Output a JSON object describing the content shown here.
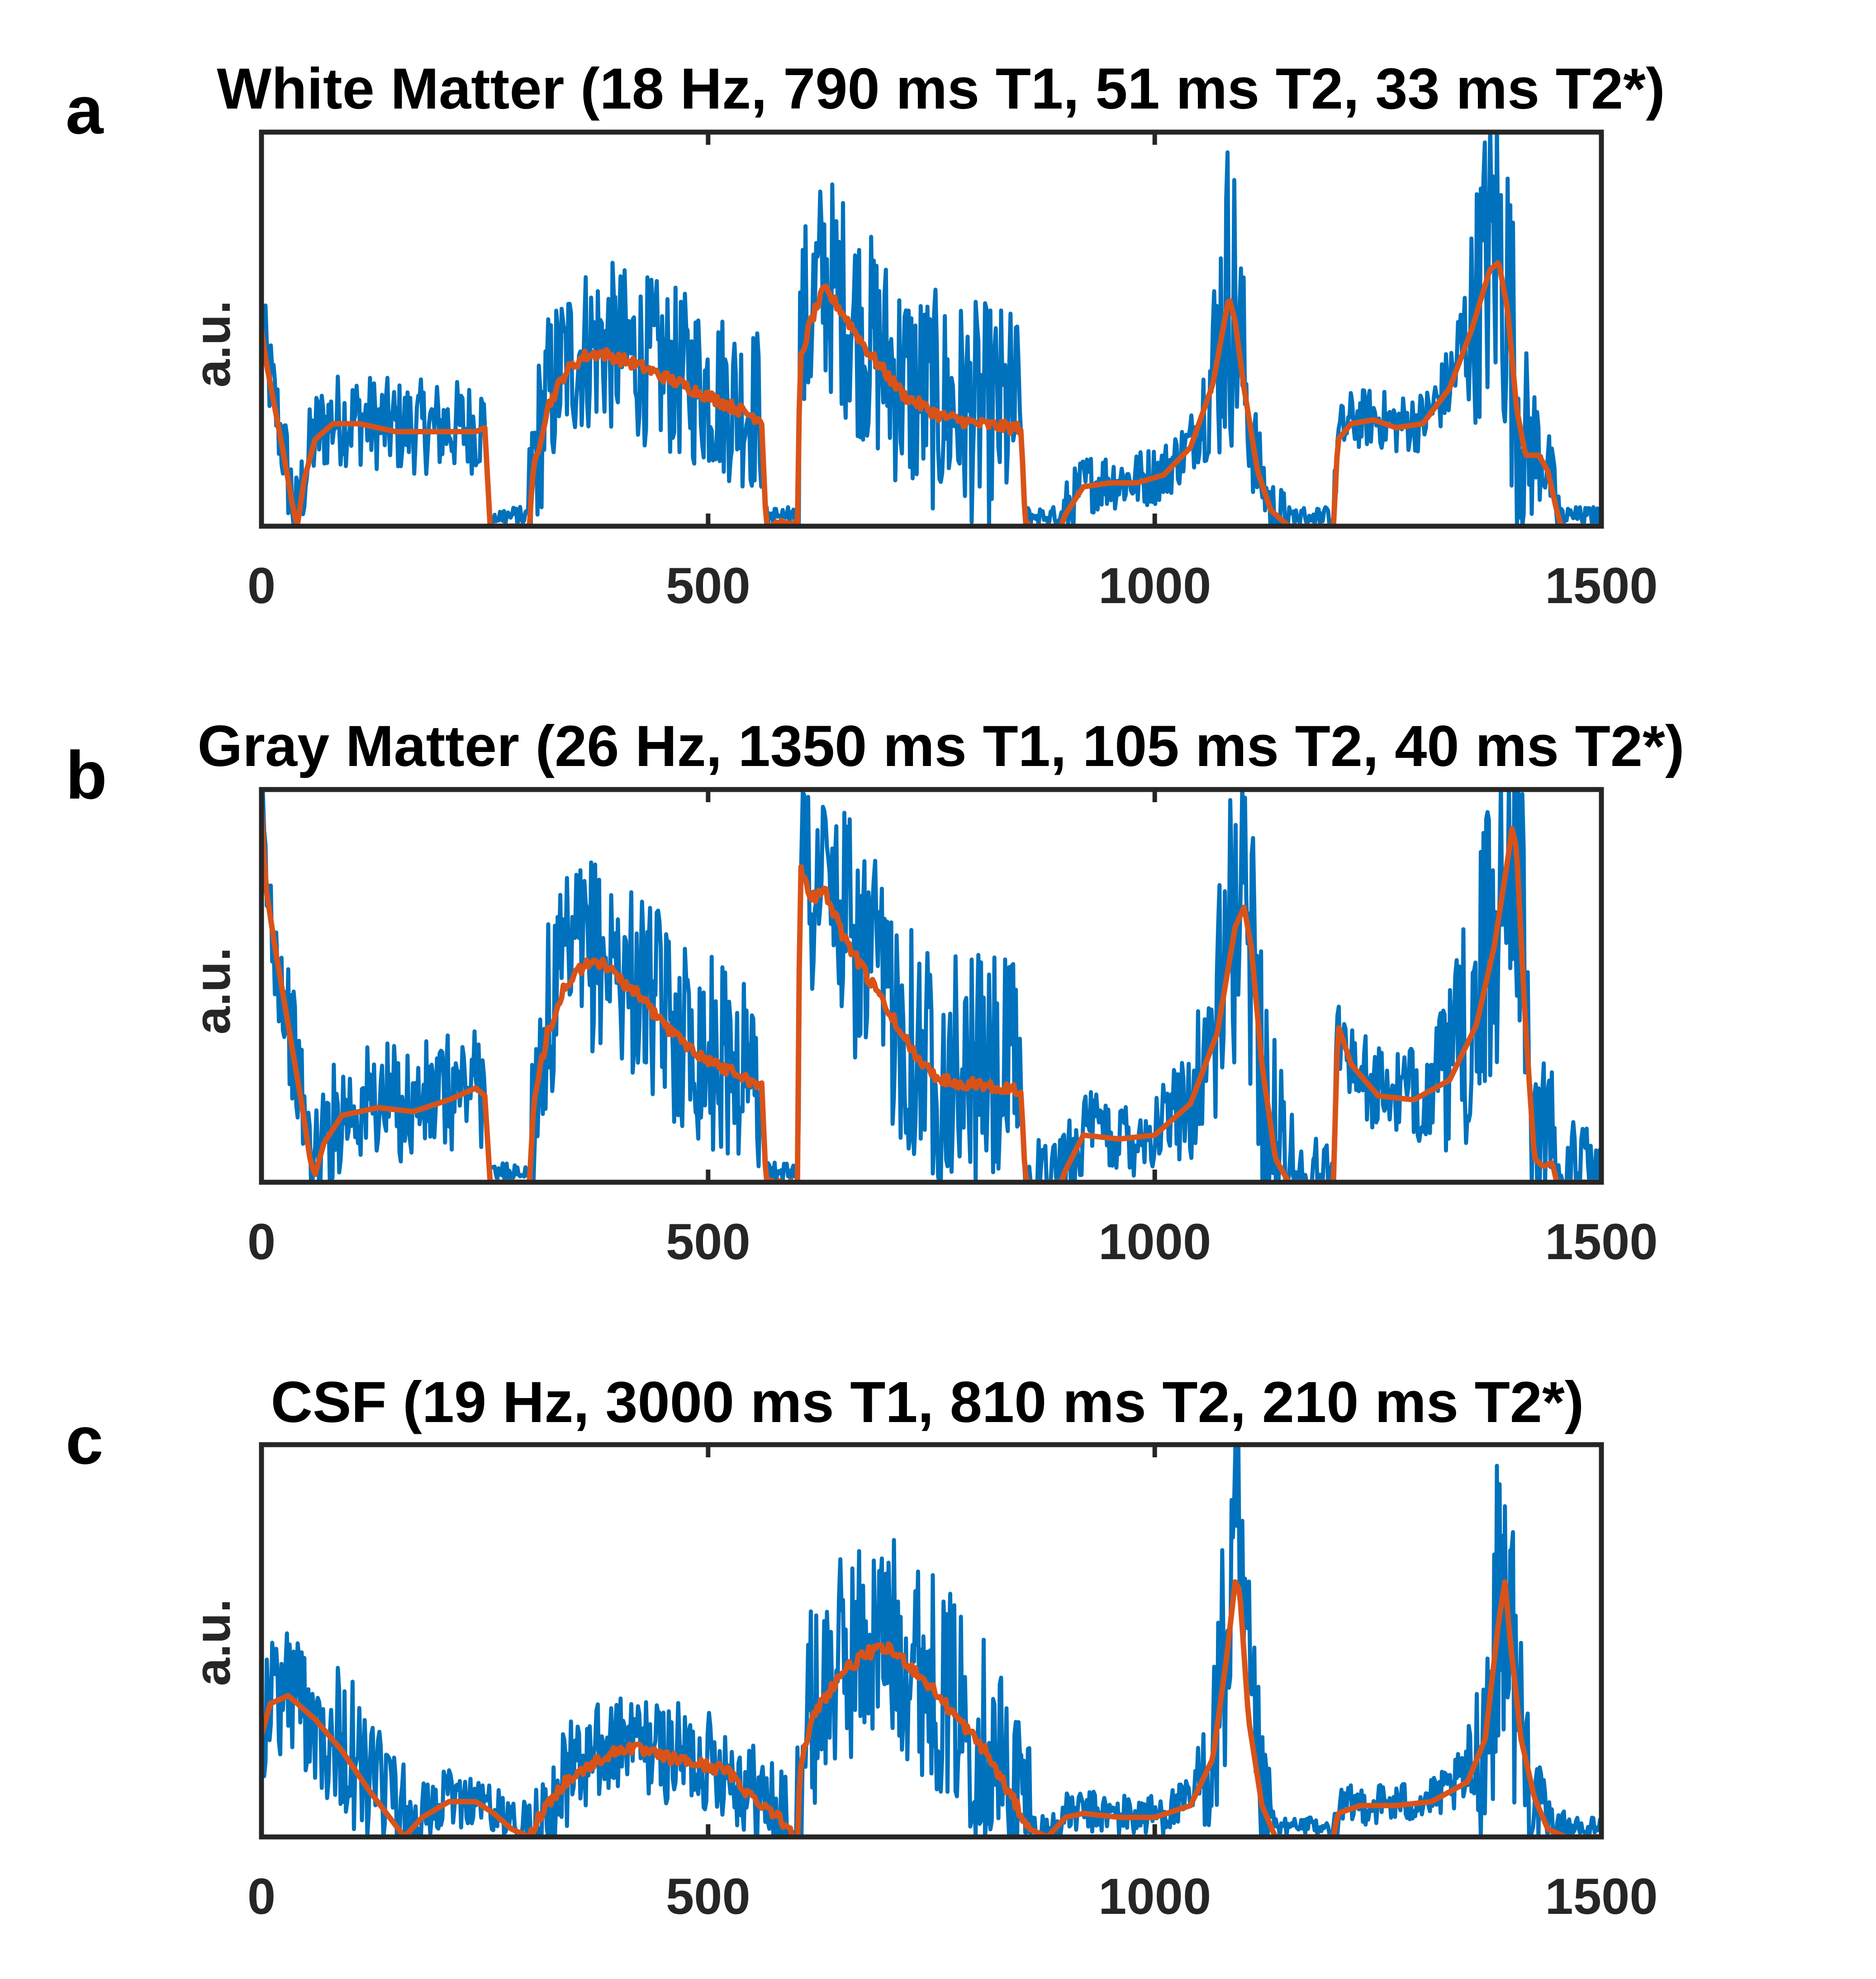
{
  "figure": {
    "colors": {
      "measured": "#0072BD",
      "fit": "#D95319",
      "axis": "#262626"
    }
  },
  "chart_data": [
    {
      "type": "line",
      "panel_label": "a",
      "title": "White Matter (18 Hz, 790 ms T1, 51 ms T2, 33 ms T2*)",
      "ylabel": "a.u.",
      "xlabel": "",
      "xlim": [
        0,
        1500
      ],
      "ylim": [
        0,
        1.0
      ],
      "xticks": [
        0,
        500,
        1000,
        1500
      ],
      "xtick_labels": [
        "0",
        "500",
        "1000",
        "1500"
      ],
      "fit_points": [
        [
          0,
          0.5
        ],
        [
          5,
          0.42
        ],
        [
          15,
          0.3
        ],
        [
          25,
          0.18
        ],
        [
          35,
          0.05
        ],
        [
          40,
          0.0
        ],
        [
          48,
          0.12
        ],
        [
          60,
          0.22
        ],
        [
          80,
          0.26
        ],
        [
          110,
          0.26
        ],
        [
          150,
          0.24
        ],
        [
          200,
          0.24
        ],
        [
          240,
          0.24
        ],
        [
          250,
          0.25
        ],
        [
          256,
          0.0
        ],
        [
          300,
          0.0
        ],
        [
          305,
          0.15
        ],
        [
          320,
          0.3
        ],
        [
          340,
          0.39
        ],
        [
          360,
          0.43
        ],
        [
          380,
          0.44
        ],
        [
          420,
          0.41
        ],
        [
          460,
          0.37
        ],
        [
          500,
          0.33
        ],
        [
          540,
          0.29
        ],
        [
          560,
          0.27
        ],
        [
          565,
          0.0
        ],
        [
          600,
          0.0
        ],
        [
          603,
          0.42
        ],
        [
          615,
          0.52
        ],
        [
          630,
          0.6
        ],
        [
          645,
          0.56
        ],
        [
          680,
          0.44
        ],
        [
          720,
          0.33
        ],
        [
          760,
          0.28
        ],
        [
          800,
          0.26
        ],
        [
          840,
          0.25
        ],
        [
          850,
          0.25
        ],
        [
          855,
          0.0
        ],
        [
          895,
          0.0
        ],
        [
          900,
          0.03
        ],
        [
          920,
          0.1
        ],
        [
          950,
          0.11
        ],
        [
          980,
          0.11
        ],
        [
          1010,
          0.13
        ],
        [
          1040,
          0.2
        ],
        [
          1065,
          0.36
        ],
        [
          1078,
          0.52
        ],
        [
          1083,
          0.58
        ],
        [
          1090,
          0.52
        ],
        [
          1100,
          0.35
        ],
        [
          1115,
          0.14
        ],
        [
          1130,
          0.04
        ],
        [
          1150,
          0.0
        ],
        [
          1200,
          0.0
        ],
        [
          1205,
          0.22
        ],
        [
          1220,
          0.26
        ],
        [
          1245,
          0.27
        ],
        [
          1270,
          0.25
        ],
        [
          1300,
          0.26
        ],
        [
          1330,
          0.35
        ],
        [
          1355,
          0.5
        ],
        [
          1375,
          0.65
        ],
        [
          1385,
          0.67
        ],
        [
          1395,
          0.55
        ],
        [
          1405,
          0.3
        ],
        [
          1415,
          0.18
        ],
        [
          1430,
          0.18
        ],
        [
          1440,
          0.14
        ],
        [
          1450,
          0.04
        ],
        [
          1455,
          0.0
        ],
        [
          1500,
          0.0
        ]
      ],
      "meas_segments": [
        [
          0,
          250,
          0.22
        ],
        [
          300,
          560,
          0.4
        ],
        [
          600,
          850,
          0.52
        ],
        [
          860,
          1500,
          0.14
        ]
      ],
      "meas_peaks": [
        [
          1083,
          0.62,
          22
        ],
        [
          1385,
          0.7,
          35
        ]
      ]
    },
    {
      "type": "line",
      "panel_label": "b",
      "title": "Gray Matter (26 Hz, 1350 ms T1, 105 ms T2, 40 ms T2*)",
      "ylabel": "a.u.",
      "xlabel": "",
      "xlim": [
        0,
        1500
      ],
      "ylim": [
        0,
        1.0
      ],
      "xticks": [
        0,
        500,
        1000,
        1500
      ],
      "xtick_labels": [
        "0",
        "500",
        "1000",
        "1500"
      ],
      "fit_points": [
        [
          0,
          0.95
        ],
        [
          5,
          0.75
        ],
        [
          15,
          0.6
        ],
        [
          30,
          0.4
        ],
        [
          45,
          0.2
        ],
        [
          55,
          0.05
        ],
        [
          60,
          0.02
        ],
        [
          70,
          0.1
        ],
        [
          90,
          0.17
        ],
        [
          130,
          0.19
        ],
        [
          170,
          0.18
        ],
        [
          210,
          0.21
        ],
        [
          240,
          0.24
        ],
        [
          250,
          0.22
        ],
        [
          256,
          0.0
        ],
        [
          300,
          0.0
        ],
        [
          305,
          0.2
        ],
        [
          320,
          0.38
        ],
        [
          340,
          0.5
        ],
        [
          360,
          0.55
        ],
        [
          380,
          0.56
        ],
        [
          420,
          0.48
        ],
        [
          460,
          0.38
        ],
        [
          500,
          0.31
        ],
        [
          540,
          0.27
        ],
        [
          560,
          0.24
        ],
        [
          565,
          0.0
        ],
        [
          600,
          0.0
        ],
        [
          603,
          0.8
        ],
        [
          615,
          0.72
        ],
        [
          630,
          0.75
        ],
        [
          650,
          0.63
        ],
        [
          690,
          0.48
        ],
        [
          730,
          0.33
        ],
        [
          760,
          0.26
        ],
        [
          800,
          0.25
        ],
        [
          840,
          0.24
        ],
        [
          850,
          0.23
        ],
        [
          855,
          0.0
        ],
        [
          895,
          0.0
        ],
        [
          900,
          0.03
        ],
        [
          920,
          0.12
        ],
        [
          960,
          0.11
        ],
        [
          1000,
          0.12
        ],
        [
          1040,
          0.2
        ],
        [
          1070,
          0.38
        ],
        [
          1090,
          0.65
        ],
        [
          1100,
          0.7
        ],
        [
          1108,
          0.6
        ],
        [
          1120,
          0.3
        ],
        [
          1135,
          0.06
        ],
        [
          1150,
          0.0
        ],
        [
          1200,
          0.0
        ],
        [
          1205,
          0.4
        ],
        [
          1220,
          0.3
        ],
        [
          1250,
          0.22
        ],
        [
          1290,
          0.21
        ],
        [
          1330,
          0.26
        ],
        [
          1360,
          0.4
        ],
        [
          1380,
          0.6
        ],
        [
          1395,
          0.82
        ],
        [
          1400,
          0.9
        ],
        [
          1405,
          0.85
        ],
        [
          1415,
          0.4
        ],
        [
          1425,
          0.06
        ],
        [
          1435,
          0.04
        ],
        [
          1445,
          0.05
        ],
        [
          1450,
          0.0
        ],
        [
          1500,
          0.0
        ]
      ],
      "meas_segments": [
        [
          0,
          250,
          0.28
        ],
        [
          300,
          560,
          0.45
        ],
        [
          600,
          850,
          0.55
        ],
        [
          860,
          1500,
          0.2
        ]
      ],
      "meas_peaks": [
        [
          1100,
          0.55,
          45
        ],
        [
          1390,
          0.62,
          55
        ]
      ]
    },
    {
      "type": "line",
      "panel_label": "c",
      "title": "CSF (19 Hz, 3000 ms T1, 810 ms T2, 210 ms T2*)",
      "ylabel": "a.u.",
      "xlabel": "",
      "xlim": [
        0,
        1500
      ],
      "ylim": [
        0,
        1.0
      ],
      "xticks": [
        0,
        500,
        1000,
        1500
      ],
      "xtick_labels": [
        "0",
        "500",
        "1000",
        "1500"
      ],
      "fit_points": [
        [
          0,
          0.26
        ],
        [
          10,
          0.34
        ],
        [
          30,
          0.36
        ],
        [
          60,
          0.3
        ],
        [
          90,
          0.22
        ],
        [
          120,
          0.12
        ],
        [
          150,
          0.03
        ],
        [
          160,
          0.0
        ],
        [
          180,
          0.05
        ],
        [
          210,
          0.09
        ],
        [
          240,
          0.09
        ],
        [
          260,
          0.06
        ],
        [
          280,
          0.02
        ],
        [
          300,
          0.0
        ],
        [
          315,
          0.07
        ],
        [
          340,
          0.14
        ],
        [
          380,
          0.2
        ],
        [
          410,
          0.23
        ],
        [
          440,
          0.21
        ],
        [
          480,
          0.19
        ],
        [
          520,
          0.17
        ],
        [
          550,
          0.1
        ],
        [
          570,
          0.07
        ],
        [
          600,
          0.0
        ],
        [
          603,
          0.18
        ],
        [
          620,
          0.32
        ],
        [
          650,
          0.42
        ],
        [
          680,
          0.47
        ],
        [
          700,
          0.48
        ],
        [
          720,
          0.45
        ],
        [
          750,
          0.38
        ],
        [
          780,
          0.3
        ],
        [
          810,
          0.22
        ],
        [
          840,
          0.1
        ],
        [
          860,
          0.02
        ],
        [
          880,
          0.0
        ],
        [
          900,
          0.05
        ],
        [
          920,
          0.06
        ],
        [
          960,
          0.05
        ],
        [
          1000,
          0.05
        ],
        [
          1040,
          0.08
        ],
        [
          1065,
          0.2
        ],
        [
          1080,
          0.45
        ],
        [
          1090,
          0.65
        ],
        [
          1095,
          0.63
        ],
        [
          1105,
          0.3
        ],
        [
          1120,
          0.08
        ],
        [
          1135,
          0.0
        ],
        [
          1200,
          0.0
        ],
        [
          1205,
          0.06
        ],
        [
          1230,
          0.08
        ],
        [
          1270,
          0.08
        ],
        [
          1310,
          0.09
        ],
        [
          1350,
          0.14
        ],
        [
          1370,
          0.25
        ],
        [
          1385,
          0.55
        ],
        [
          1392,
          0.65
        ],
        [
          1398,
          0.5
        ],
        [
          1410,
          0.25
        ],
        [
          1425,
          0.1
        ],
        [
          1440,
          0.02
        ],
        [
          1460,
          0.0
        ],
        [
          1500,
          0.0
        ]
      ],
      "meas_segments": [
        [
          0,
          160,
          0.36
        ],
        [
          160,
          300,
          0.14
        ],
        [
          300,
          590,
          0.24
        ],
        [
          600,
          860,
          0.5
        ],
        [
          860,
          1500,
          0.1
        ]
      ],
      "meas_peaks": [
        [
          1090,
          0.65,
          30
        ],
        [
          1390,
          0.68,
          30
        ]
      ]
    }
  ]
}
